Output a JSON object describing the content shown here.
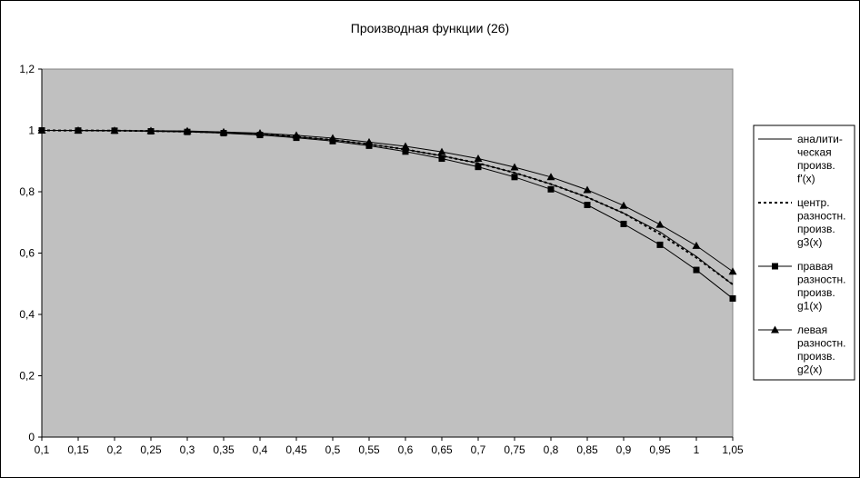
{
  "chart_data": {
    "type": "line",
    "title": "Производная функции (26)",
    "x": [
      0.1,
      0.15,
      0.2,
      0.25,
      0.3,
      0.35,
      0.4,
      0.45,
      0.5,
      0.55,
      0.6,
      0.65,
      0.7,
      0.75,
      0.8,
      0.85,
      0.9,
      0.95,
      1,
      1.05
    ],
    "x_tick_labels": [
      "0,1",
      "0,15",
      "0,2",
      "0,25",
      "0,3",
      "0,35",
      "0,4",
      "0,45",
      "0,5",
      "0,55",
      "0,6",
      "0,65",
      "0,7",
      "0,75",
      "0,8",
      "0,85",
      "0,9",
      "0,95",
      "1",
      "1,05"
    ],
    "y_ticks": [
      0,
      0.2,
      0.4,
      0.6,
      0.8,
      1,
      1.2
    ],
    "y_tick_labels": [
      "0",
      "0,2",
      "0,4",
      "0,6",
      "0,8",
      "1",
      "1,2"
    ],
    "ylim": [
      0,
      1.2
    ],
    "grid": false,
    "plot_background": "#c0c0c0",
    "legend_position": "right",
    "series": [
      {
        "name": [
          "аналити-",
          "ческая",
          "произв.",
          "f'(x)"
        ],
        "style": "solid",
        "marker": "none",
        "values": [
          0.9999,
          0.9997,
          0.9992,
          0.998,
          0.996,
          0.993,
          0.988,
          0.979,
          0.969,
          0.955,
          0.938,
          0.917,
          0.893,
          0.862,
          0.825,
          0.782,
          0.73,
          0.669,
          0.589,
          0.497
        ]
      },
      {
        "name": [
          "центр.",
          "разностн.",
          "произв.",
          "g3(x)"
        ],
        "style": "dashed",
        "marker": "none",
        "values": [
          0.9999,
          0.9997,
          0.9992,
          0.998,
          0.996,
          0.993,
          0.988,
          0.979,
          0.969,
          0.955,
          0.938,
          0.917,
          0.893,
          0.862,
          0.825,
          0.782,
          0.73,
          0.662,
          0.585,
          0.498
        ]
      },
      {
        "name": [
          "правая",
          "разностн.",
          "произв.",
          "g1(x)"
        ],
        "style": "solid",
        "marker": "square",
        "values": [
          0.9999,
          0.9995,
          0.999,
          0.997,
          0.995,
          0.991,
          0.985,
          0.976,
          0.965,
          0.95,
          0.931,
          0.908,
          0.881,
          0.848,
          0.808,
          0.757,
          0.695,
          0.627,
          0.545,
          0.452
        ]
      },
      {
        "name": [
          "левая",
          "разностн.",
          "произв.",
          "g2(x)"
        ],
        "style": "solid",
        "marker": "triangle",
        "values": [
          1.0,
          0.9999,
          0.9995,
          0.999,
          0.998,
          0.995,
          0.991,
          0.984,
          0.975,
          0.962,
          0.948,
          0.93,
          0.908,
          0.88,
          0.848,
          0.806,
          0.755,
          0.693,
          0.624,
          0.54
        ]
      }
    ]
  }
}
